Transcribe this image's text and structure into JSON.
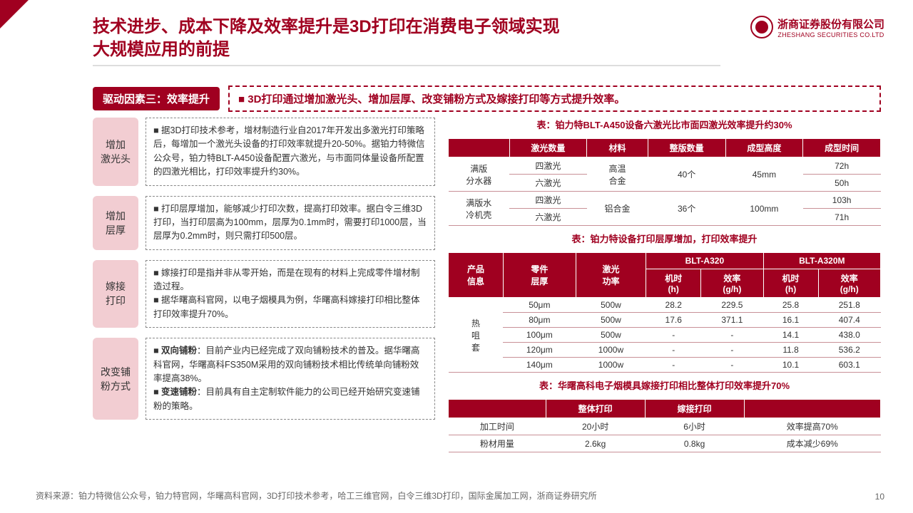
{
  "header": {
    "title_l1": "技术进步、成本下降及效率提升是3D打印在消费电子领域实现",
    "title_l2": "大规模应用的前提",
    "logo_cn": "浙商证券股份有限公司",
    "logo_en": "ZHESHANG SECURITIES CO.LTD"
  },
  "badge": "驱动因素三：效率提升",
  "callout": "3D打印通过增加激光头、增加层厚、改变铺粉方式及嫁接打印等方式提升效率。",
  "left": [
    {
      "label": "增加\n激光头",
      "bullets": [
        "据3D打印技术参考，增材制造行业自2017年开发出多激光打印策略后，每增加一个激光头设备的打印效率就提升20-50%。据铂力特微信公众号，铂力特BLT-A450设备配置六激光，与市面同体量设备所配置的四激光相比，打印效率提升约30%。"
      ]
    },
    {
      "label": "增加\n层厚",
      "bullets": [
        "打印层厚增加，能够减少打印次数，提高打印效率。据白令三维3D打印，当打印层高为100mm，层厚为0.1mm时，需要打印1000层，当层厚为0.2mm时，则只需打印500层。"
      ]
    },
    {
      "label": "嫁接\n打印",
      "bullets": [
        "嫁接打印是指并非从零开始，而是在现有的材料上完成零件增材制造过程。",
        "据华曙高科官网，以电子烟模具为例，华曙高科嫁接打印相比整体打印效率提升70%。"
      ]
    },
    {
      "label": "改变铺\n粉方式",
      "bullets": [
        "<b>双向铺粉</b>：目前产业内已经完成了双向铺粉技术的普及。据华曙高科官网，华曙高科FS350M采用的双向铺粉技术相比传统单向铺粉效率提高38%。",
        "<b>变速铺粉</b>：目前具有自主定制软件能力的公司已经开始研究变速铺粉的策略。"
      ]
    }
  ],
  "t1": {
    "caption": "表：铂力特BLT-A450设备六激光比市面四激光效率提升约30%",
    "headers": [
      "",
      "激光数量",
      "材料",
      "整版数量",
      "成型高度",
      "成型时间"
    ],
    "rows": [
      {
        "r": "满版\n分水器",
        "c": [
          [
            "四激光",
            "高温\n合金",
            "40个",
            "45mm",
            "72h"
          ],
          [
            "六激光",
            "",
            "",
            "",
            "50h"
          ]
        ]
      },
      {
        "r": "满版水\n冷机壳",
        "c": [
          [
            "四激光",
            "铝合金",
            "36个",
            "100mm",
            "103h"
          ],
          [
            "六激光",
            "",
            "",
            "",
            "71h"
          ]
        ]
      }
    ]
  },
  "t2": {
    "caption": "表：铂力特设备打印层厚增加，打印效率提升",
    "h1": [
      "产品\n信息",
      "零件\n层厚",
      "激光\n功率",
      "BLT-A320",
      "BLT-A320M"
    ],
    "h2": [
      "机时\n(h)",
      "效率\n(g/h)",
      "机时\n(h)",
      "效率\n(g/h)"
    ],
    "rowhead": "热\n咀\n套",
    "rows": [
      [
        "50μm",
        "500w",
        "28.2",
        "229.5",
        "25.8",
        "251.8"
      ],
      [
        "80μm",
        "500w",
        "17.6",
        "371.1",
        "16.1",
        "407.4"
      ],
      [
        "100μm",
        "500w",
        "-",
        "-",
        "14.1",
        "438.0"
      ],
      [
        "120μm",
        "1000w",
        "-",
        "-",
        "11.8",
        "536.2"
      ],
      [
        "140μm",
        "1000w",
        "-",
        "-",
        "10.1",
        "603.1"
      ]
    ]
  },
  "t3": {
    "caption": "表：华曙高科电子烟模具嫁接打印相比整体打印效率提升70%",
    "headers": [
      "",
      "整体打印",
      "嫁接打印",
      ""
    ],
    "rows": [
      [
        "加工时间",
        "20小时",
        "6小时",
        "效率提高70%"
      ],
      [
        "粉材用量",
        "2.6kg",
        "0.8kg",
        "成本减少69%"
      ]
    ]
  },
  "source": "资料来源：铂力特微信公众号，铂力特官网，华曙高科官网，3D打印技术参考，哈工三维官网，白令三维3D打印，国际金属加工网，浙商证券研究所",
  "pagenum": "10",
  "colors": {
    "brand": "#a00020",
    "pink": "#f2cdd2"
  }
}
